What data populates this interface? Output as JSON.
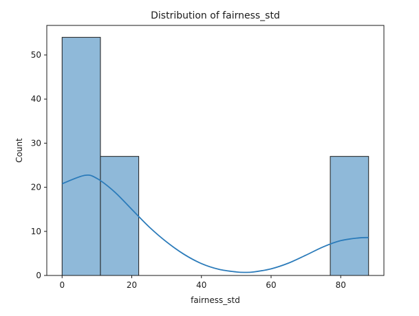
{
  "chart_data": {
    "type": "bar",
    "title": "Distribution of fairness_std",
    "xlabel": "fairness_std",
    "ylabel": "Count",
    "xlim": [
      -4.4,
      92.4
    ],
    "ylim": [
      0,
      56.7
    ],
    "xticks": [
      0,
      20,
      40,
      60,
      80
    ],
    "yticks": [
      0,
      10,
      20,
      30,
      40,
      50
    ],
    "bins": [
      {
        "x0": 0,
        "x1": 11,
        "count": 54
      },
      {
        "x0": 11,
        "x1": 22,
        "count": 27
      },
      {
        "x0": 22,
        "x1": 33,
        "count": 0
      },
      {
        "x0": 33,
        "x1": 44,
        "count": 0
      },
      {
        "x0": 44,
        "x1": 55,
        "count": 0
      },
      {
        "x0": 55,
        "x1": 66,
        "count": 0
      },
      {
        "x0": 66,
        "x1": 77,
        "count": 0
      },
      {
        "x0": 77,
        "x1": 88,
        "count": 27
      }
    ],
    "kde": {
      "x": [
        0,
        6.5,
        10,
        15,
        20,
        25,
        30,
        35,
        40,
        45,
        50,
        52.5,
        55,
        60,
        65,
        70,
        75,
        80,
        85,
        88
      ],
      "y": [
        20.8,
        22.7,
        22.0,
        19.0,
        15.0,
        11.0,
        7.6,
        4.8,
        2.7,
        1.4,
        0.8,
        0.7,
        0.8,
        1.5,
        2.8,
        4.6,
        6.5,
        7.9,
        8.5,
        8.6
      ]
    },
    "colors": {
      "bar_fill": "#8fb9d9",
      "bar_edge": "#1a1a1a",
      "kde_line": "#2b7bba"
    },
    "grid": false,
    "legend": "none"
  }
}
